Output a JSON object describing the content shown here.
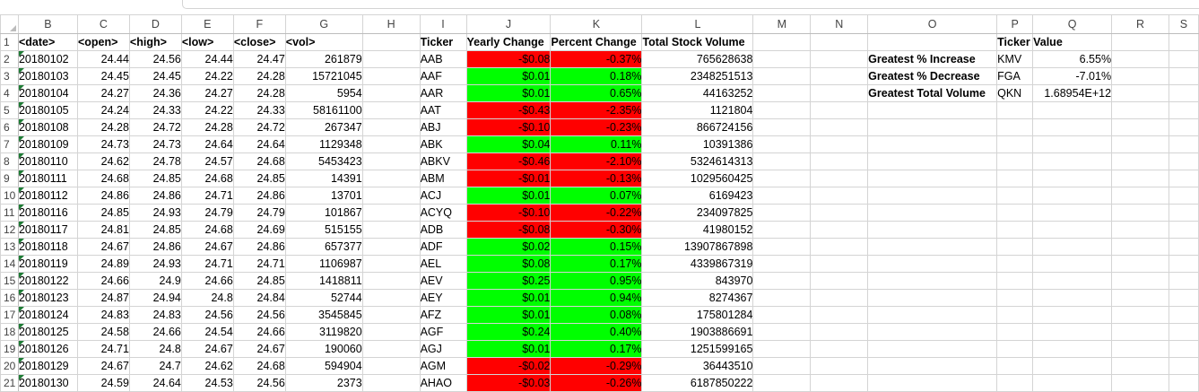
{
  "columns": [
    "B",
    "C",
    "D",
    "E",
    "F",
    "G",
    "H",
    "I",
    "J",
    "K",
    "L",
    "M",
    "N",
    "O",
    "P",
    "Q",
    "R",
    "S"
  ],
  "row_numbers": [
    "1",
    "2",
    "3",
    "4",
    "5",
    "6",
    "7",
    "8",
    "9",
    "10",
    "11",
    "12",
    "13",
    "14",
    "15",
    "16",
    "17",
    "18",
    "19",
    "20",
    "21"
  ],
  "headers": {
    "date": "<date>",
    "open": "<open>",
    "high": "<high>",
    "low": "<low>",
    "close": "<close>",
    "vol": "<vol>",
    "ticker": "Ticker",
    "yearly_change": "Yearly Change",
    "percent_change": "Percent Change",
    "total_volume": "Total Stock Volume",
    "summary_ticker": "Ticker",
    "summary_value": "Value"
  },
  "rows": [
    {
      "date": "20180102",
      "open": "24.44",
      "high": "24.56",
      "low": "24.44",
      "close": "24.47",
      "vol": "261879",
      "ticker": "AAB",
      "change": "-$0.08",
      "pct": "-0.37%",
      "total": "765628638",
      "status": "neg"
    },
    {
      "date": "20180103",
      "open": "24.45",
      "high": "24.45",
      "low": "24.22",
      "close": "24.28",
      "vol": "15721045",
      "ticker": "AAF",
      "change": "$0.01",
      "pct": "0.18%",
      "total": "2348251513",
      "status": "pos"
    },
    {
      "date": "20180104",
      "open": "24.27",
      "high": "24.36",
      "low": "24.27",
      "close": "24.28",
      "vol": "5954",
      "ticker": "AAR",
      "change": "$0.01",
      "pct": "0.65%",
      "total": "44163252",
      "status": "pos"
    },
    {
      "date": "20180105",
      "open": "24.24",
      "high": "24.33",
      "low": "24.22",
      "close": "24.33",
      "vol": "58161100",
      "ticker": "AAT",
      "change": "-$0.43",
      "pct": "-2.35%",
      "total": "1121804",
      "status": "neg"
    },
    {
      "date": "20180108",
      "open": "24.28",
      "high": "24.72",
      "low": "24.28",
      "close": "24.72",
      "vol": "267347",
      "ticker": "ABJ",
      "change": "-$0.10",
      "pct": "-0.23%",
      "total": "866724156",
      "status": "neg"
    },
    {
      "date": "20180109",
      "open": "24.73",
      "high": "24.73",
      "low": "24.64",
      "close": "24.64",
      "vol": "1129348",
      "ticker": "ABK",
      "change": "$0.04",
      "pct": "0.11%",
      "total": "10391386",
      "status": "pos"
    },
    {
      "date": "20180110",
      "open": "24.62",
      "high": "24.78",
      "low": "24.57",
      "close": "24.68",
      "vol": "5453423",
      "ticker": "ABKV",
      "change": "-$0.46",
      "pct": "-2.10%",
      "total": "5324614313",
      "status": "neg"
    },
    {
      "date": "20180111",
      "open": "24.68",
      "high": "24.85",
      "low": "24.68",
      "close": "24.85",
      "vol": "14391",
      "ticker": "ABM",
      "change": "-$0.01",
      "pct": "-0.13%",
      "total": "1029560425",
      "status": "neg"
    },
    {
      "date": "20180112",
      "open": "24.86",
      "high": "24.86",
      "low": "24.71",
      "close": "24.86",
      "vol": "13701",
      "ticker": "ACJ",
      "change": "$0.01",
      "pct": "0.07%",
      "total": "6169423",
      "status": "pos"
    },
    {
      "date": "20180116",
      "open": "24.85",
      "high": "24.93",
      "low": "24.79",
      "close": "24.79",
      "vol": "101867",
      "ticker": "ACYQ",
      "change": "-$0.10",
      "pct": "-0.22%",
      "total": "234097825",
      "status": "neg"
    },
    {
      "date": "20180117",
      "open": "24.81",
      "high": "24.85",
      "low": "24.68",
      "close": "24.69",
      "vol": "515155",
      "ticker": "ADB",
      "change": "-$0.08",
      "pct": "-0.30%",
      "total": "41980152",
      "status": "neg"
    },
    {
      "date": "20180118",
      "open": "24.67",
      "high": "24.86",
      "low": "24.67",
      "close": "24.86",
      "vol": "657377",
      "ticker": "ADF",
      "change": "$0.02",
      "pct": "0.15%",
      "total": "13907867898",
      "status": "pos"
    },
    {
      "date": "20180119",
      "open": "24.89",
      "high": "24.93",
      "low": "24.71",
      "close": "24.71",
      "vol": "1106987",
      "ticker": "AEL",
      "change": "$0.08",
      "pct": "0.17%",
      "total": "4339867319",
      "status": "pos"
    },
    {
      "date": "20180122",
      "open": "24.66",
      "high": "24.9",
      "low": "24.66",
      "close": "24.85",
      "vol": "1418811",
      "ticker": "AEV",
      "change": "$0.25",
      "pct": "0.95%",
      "total": "843970",
      "status": "pos"
    },
    {
      "date": "20180123",
      "open": "24.87",
      "high": "24.94",
      "low": "24.8",
      "close": "24.84",
      "vol": "52744",
      "ticker": "AEY",
      "change": "$0.01",
      "pct": "0.94%",
      "total": "8274367",
      "status": "pos"
    },
    {
      "date": "20180124",
      "open": "24.83",
      "high": "24.83",
      "low": "24.56",
      "close": "24.56",
      "vol": "3545845",
      "ticker": "AFZ",
      "change": "$0.01",
      "pct": "0.08%",
      "total": "175801284",
      "status": "pos"
    },
    {
      "date": "20180125",
      "open": "24.58",
      "high": "24.66",
      "low": "24.54",
      "close": "24.66",
      "vol": "3119820",
      "ticker": "AGF",
      "change": "$0.24",
      "pct": "0.40%",
      "total": "1903886691",
      "status": "pos"
    },
    {
      "date": "20180126",
      "open": "24.71",
      "high": "24.8",
      "low": "24.67",
      "close": "24.67",
      "vol": "190060",
      "ticker": "AGJ",
      "change": "$0.01",
      "pct": "0.17%",
      "total": "1251599165",
      "status": "pos"
    },
    {
      "date": "20180129",
      "open": "24.67",
      "high": "24.7",
      "low": "24.62",
      "close": "24.68",
      "vol": "594904",
      "ticker": "AGM",
      "change": "-$0.02",
      "pct": "-0.29%",
      "total": "36443510",
      "status": "neg"
    },
    {
      "date": "20180130",
      "open": "24.59",
      "high": "24.64",
      "low": "24.53",
      "close": "24.56",
      "vol": "2373",
      "ticker": "AHAO",
      "change": "-$0.03",
      "pct": "-0.26%",
      "total": "6187850222",
      "status": "neg"
    }
  ],
  "summary": [
    {
      "label": "Greatest % Increase",
      "ticker": "KMV",
      "value": "6.55%"
    },
    {
      "label": "Greatest % Decrease",
      "ticker": "FGA",
      "value": "-7.01%"
    },
    {
      "label": "Greatest Total Volume",
      "ticker": "QKN",
      "value": "1.68954E+12"
    }
  ],
  "colors": {
    "negative": "#ff0000",
    "positive": "#00ff00",
    "gridline": "#d4d4d4",
    "date_marker": "#1e7c35"
  }
}
